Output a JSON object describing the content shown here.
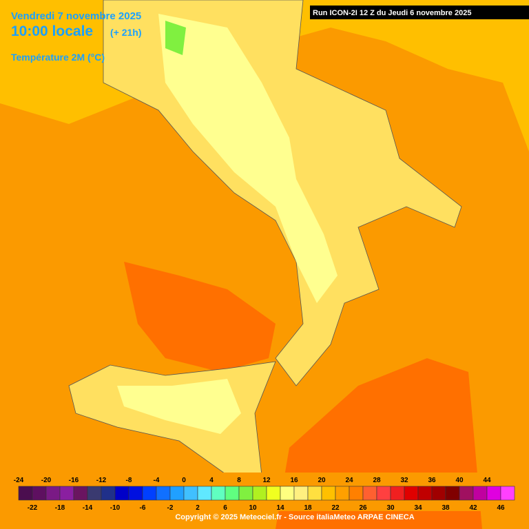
{
  "header": {
    "date": "Vendredi 7 novembre 2025",
    "time": "10:00 locale",
    "lead": "(+ 21h)",
    "variable": "Température 2M (°C)"
  },
  "run": "Run ICON-2I 12 Z du Jeudi 6 novembre 2025",
  "legend": {
    "top_labels": [
      -24,
      -20,
      -16,
      -12,
      -8,
      -4,
      0,
      4,
      8,
      12,
      16,
      20,
      24,
      28,
      32,
      36,
      40,
      44
    ],
    "bottom_labels": [
      -22,
      -18,
      -14,
      -10,
      -6,
      -2,
      2,
      6,
      10,
      14,
      18,
      22,
      26,
      30,
      34,
      38,
      42,
      46
    ],
    "colors": [
      "#4b0e4f",
      "#5e1060",
      "#7a1a85",
      "#8a1fa0",
      "#6a1560",
      "#3a3a70",
      "#20308a",
      "#0000c8",
      "#0010e0",
      "#0040ff",
      "#1070ff",
      "#20a0ff",
      "#40c0ff",
      "#60e8ff",
      "#60ffc0",
      "#60ff80",
      "#80f040",
      "#b0f020",
      "#f0ff20",
      "#ffff80",
      "#fff080",
      "#ffe040",
      "#ffc000",
      "#ffa000",
      "#ff8000",
      "#ff6030",
      "#ff4040",
      "#f02020",
      "#e00000",
      "#c00000",
      "#a00000",
      "#800000",
      "#a01060",
      "#c000a0",
      "#e000e0",
      "#ff40ff",
      "#ff90ff"
    ]
  },
  "copyright": "Copyright © 2025 Meteociel.fr - Source italiaMeteo ARPAE CINECA"
}
